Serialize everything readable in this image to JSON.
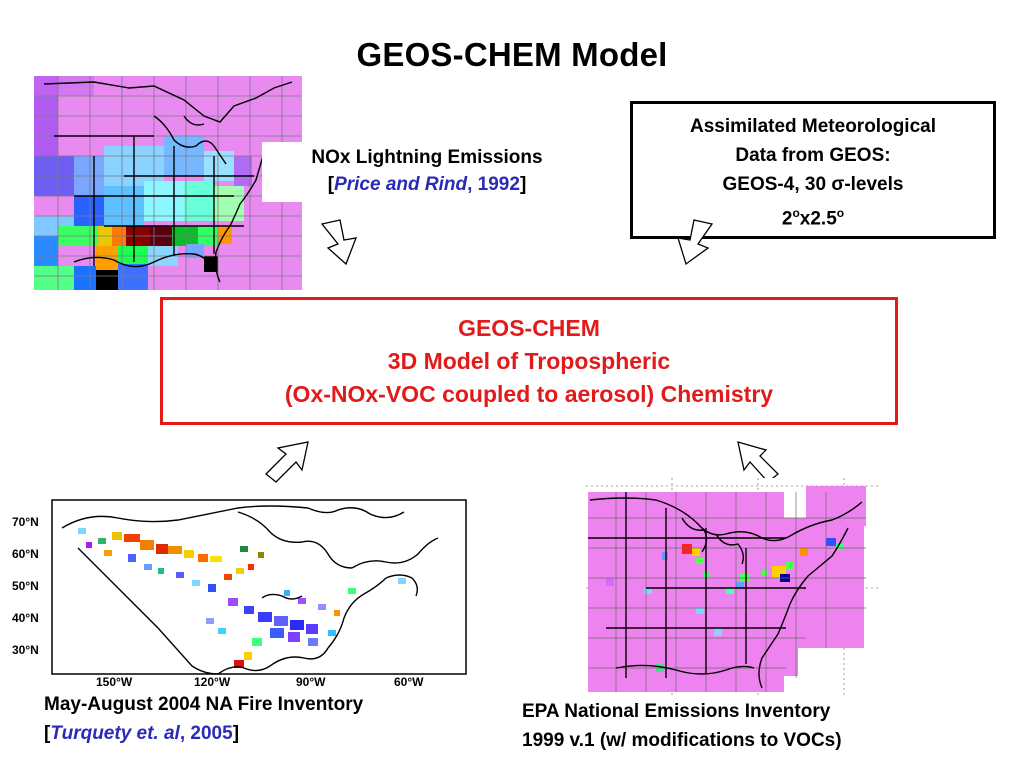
{
  "title": "GEOS-CHEM Model",
  "lightning": {
    "line1": "NOx Lightning Emissions",
    "bracket_open": "[",
    "author": "Price and Rind",
    "comma": ", ",
    "year": "1992",
    "bracket_close": "]"
  },
  "met": {
    "line1": "Assimilated Meteorological",
    "line2": "Data from GEOS:",
    "line3_prefix": "GEOS-4, 30 ",
    "sigma": "σ",
    "line3_suffix": "-levels",
    "res_a": "2",
    "deg1": "o",
    "res_mid": "x2.5",
    "deg2": "o"
  },
  "core": {
    "line1": "GEOS-CHEM",
    "line2": "3D Model of Tropospheric",
    "line3": "(Ox-NOx-VOC coupled to aerosol) Chemistry"
  },
  "fire": {
    "line1": "May-August 2004 NA Fire Inventory",
    "bracket_open": "[",
    "author": "Turquety et. al",
    "comma": ", ",
    "year": "2005",
    "bracket_close": "]",
    "lat_labels": [
      "70°N",
      "60°N",
      "50°N",
      "40°N",
      "30°N"
    ],
    "lon_labels": [
      "150°W",
      "120°W",
      "90°W",
      "60°W"
    ]
  },
  "epa": {
    "line1": "EPA National Emissions Inventory",
    "line2": "1999 v.1 (w/ modifications to VOCs)"
  },
  "colors": {
    "red_accent": "#e21a1a",
    "reference_blue": "#2a2ab8",
    "map_magenta": "#ee82ee"
  }
}
